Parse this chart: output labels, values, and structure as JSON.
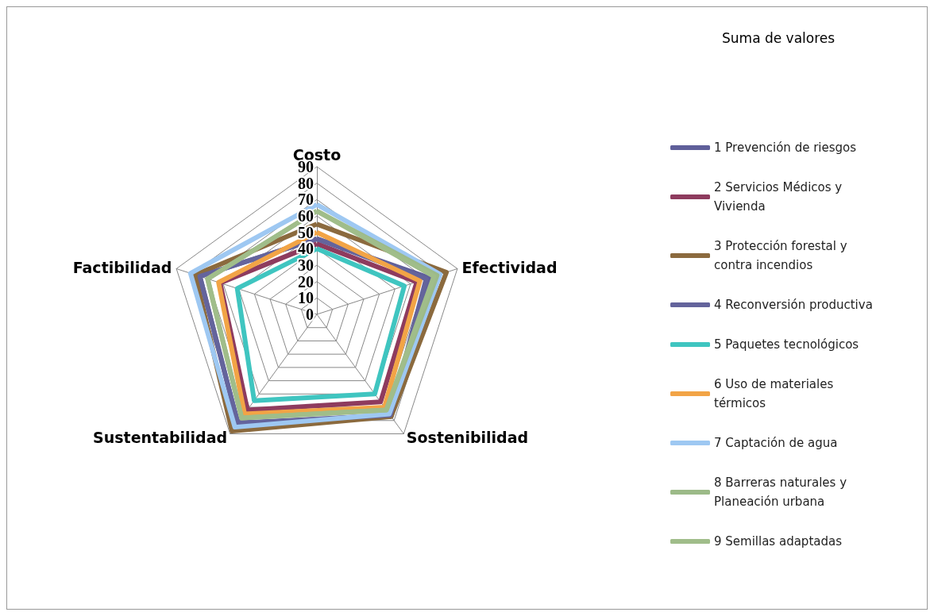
{
  "chart_data": {
    "type": "radar",
    "legend_title": "Suma de valores",
    "categories": [
      "Costo",
      "Efectividad",
      "Sostenibilidad",
      "Sustentabilidad",
      "Factibilidad"
    ],
    "ylim": [
      0,
      90
    ],
    "yticks": [
      0,
      10,
      20,
      30,
      40,
      50,
      60,
      70,
      80,
      90
    ],
    "legend": "right",
    "series": [
      {
        "name": "1 Prevención de riesgos",
        "color": "#5f5f9a",
        "values": [
          46,
          72,
          77,
          82,
          75
        ]
      },
      {
        "name": "2 Servicios Médicos y Vivienda",
        "color": "#8e3b5e",
        "values": [
          43,
          64,
          66,
          72,
          62
        ]
      },
      {
        "name": "3 Protección forestal y contra incendios",
        "color": "#8b6a3e",
        "values": [
          55,
          83,
          77,
          88,
          78
        ]
      },
      {
        "name": "4 Reconversión productiva",
        "color": "#64649c",
        "values": [
          46,
          70,
          76,
          82,
          75
        ]
      },
      {
        "name": "5 Paquetes tecnológicos",
        "color": "#3fc5c0",
        "values": [
          40,
          56,
          60,
          65,
          51
        ]
      },
      {
        "name": "6 Uso de materiales térmicos",
        "color": "#f2a446",
        "values": [
          50,
          66,
          70,
          75,
          63
        ]
      },
      {
        "name": "7 Captación de agua",
        "color": "#9ec8f2",
        "values": [
          67,
          79,
          75,
          85,
          81
        ]
      },
      {
        "name": "8 Barreras naturales y Planeación urbana",
        "color": "#9cba88",
        "values": [
          63,
          77,
          72,
          78,
          70
        ]
      },
      {
        "name": "9 Semillas adaptadas",
        "color": "#a0bd8a",
        "values": [
          63,
          75,
          72,
          78,
          70
        ]
      }
    ]
  }
}
